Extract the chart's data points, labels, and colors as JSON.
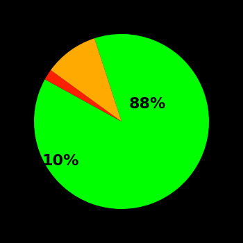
{
  "slices": [
    88,
    2,
    10
  ],
  "colors": [
    "#00ff00",
    "#ff2000",
    "#ffaa00"
  ],
  "labels": [
    "88%",
    "",
    "10%"
  ],
  "label_distances": [
    0.6,
    0,
    0.55
  ],
  "background_color": "#000000",
  "text_color": "#000000",
  "label_fontsize": 16,
  "label_fontweight": "bold",
  "startangle": 108,
  "figsize": [
    3.5,
    3.5
  ],
  "dpi": 100
}
